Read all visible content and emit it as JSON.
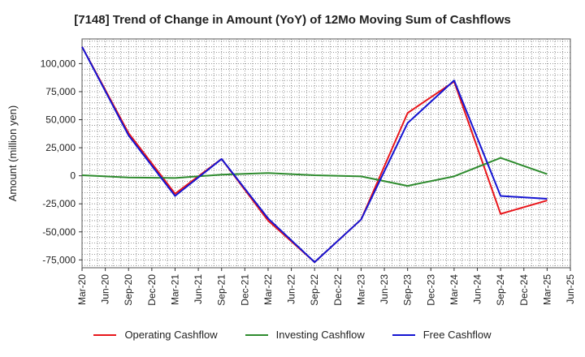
{
  "chart_data": {
    "type": "line",
    "title": "[7148]  Trend of Change in Amount (YoY) of 12Mo Moving Sum of Cashflows",
    "xlabel": "",
    "ylabel": "Amount (million yen)",
    "ylim": [
      -82000,
      122000
    ],
    "yticks": [
      -75000,
      -50000,
      -25000,
      0,
      25000,
      50000,
      75000,
      100000
    ],
    "ytick_labels": [
      "-75,000",
      "-50,000",
      "-25,000",
      "0",
      "25,000",
      "50,000",
      "75,000",
      "100,000"
    ],
    "categories": [
      "Mar-20",
      "Jun-20",
      "Sep-20",
      "Dec-20",
      "Mar-21",
      "Jun-21",
      "Sep-21",
      "Dec-21",
      "Mar-22",
      "Jun-22",
      "Sep-22",
      "Dec-22",
      "Mar-23",
      "Jun-23",
      "Sep-23",
      "Dec-23",
      "Mar-24",
      "Jun-24",
      "Sep-24",
      "Dec-24",
      "Mar-25",
      "Jun-25"
    ],
    "grid": true,
    "legend_position": "bottom",
    "series": [
      {
        "name": "Operating Cashflow",
        "color": "#e8161b",
        "values": [
          115000,
          null,
          38000,
          null,
          -16000,
          null,
          15000,
          null,
          -40000,
          null,
          -77000,
          null,
          -39000,
          null,
          56000,
          null,
          84000,
          null,
          -34000,
          null,
          -22000,
          null
        ]
      },
      {
        "name": "Investing Cashflow",
        "color": "#2e8b2e",
        "values": [
          500,
          null,
          -1500,
          null,
          -2000,
          null,
          1000,
          null,
          2500,
          null,
          500,
          null,
          -500,
          null,
          -9000,
          null,
          -500,
          null,
          16000,
          null,
          1500,
          null
        ]
      },
      {
        "name": "Free Cashflow",
        "color": "#1414d2",
        "values": [
          115000,
          null,
          36000,
          null,
          -18000,
          null,
          15000,
          null,
          -38000,
          null,
          -77000,
          null,
          -39000,
          null,
          47000,
          null,
          85000,
          null,
          -18000,
          null,
          -20500,
          null
        ]
      }
    ]
  }
}
